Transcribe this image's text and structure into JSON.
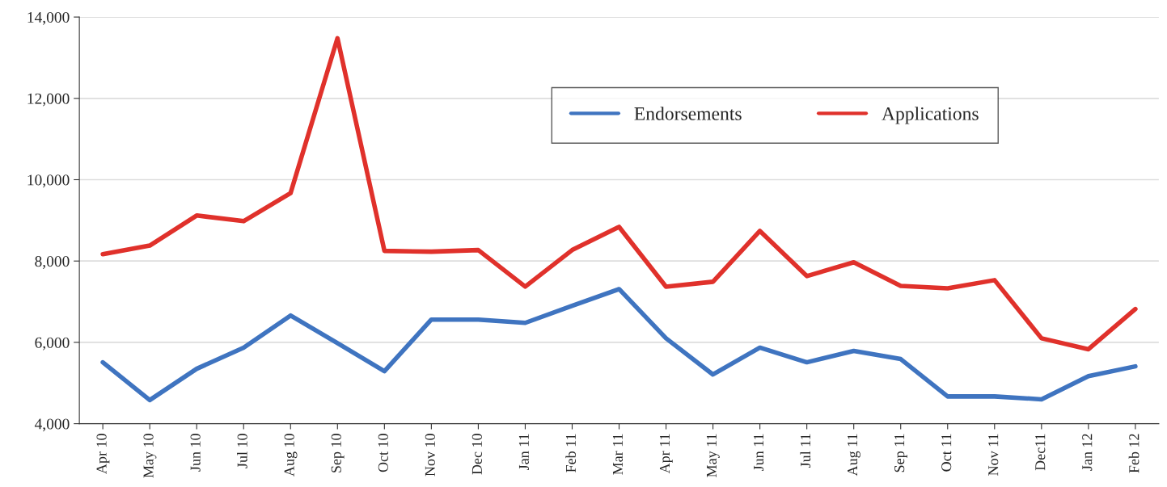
{
  "chart_data": {
    "type": "line",
    "categories": [
      "Apr 10",
      "May 10",
      "Jun 10",
      "Jul 10",
      "Aug 10",
      "Sep 10",
      "Oct 10",
      "Nov 10",
      "Dec 10",
      "Jan 11",
      "Feb 11",
      "Mar 11",
      "Apr 11",
      "May 11",
      "Jun 11",
      "Jul 11",
      "Aug 11",
      "Sep 11",
      "Oct 11",
      "Nov 11",
      "Dec11",
      "Jan 12",
      "Feb 12"
    ],
    "series": [
      {
        "name": "Endorsements",
        "color": "#3f74c0",
        "values": [
          5510,
          4580,
          5350,
          5870,
          6660,
          5980,
          5290,
          6560,
          6560,
          6480,
          6900,
          7310,
          6100,
          5210,
          5870,
          5510,
          5790,
          5590,
          4670,
          4670,
          4600,
          5170,
          5410
        ]
      },
      {
        "name": "Applications",
        "color": "#e0312b",
        "values": [
          8170,
          8380,
          9120,
          8980,
          9670,
          13480,
          8250,
          8230,
          8270,
          7370,
          8270,
          8840,
          7370,
          7490,
          8740,
          7630,
          7970,
          7390,
          7330,
          7530,
          6100,
          5830,
          6820
        ]
      }
    ],
    "ylim": [
      4000,
      14000
    ],
    "yticks": [
      {
        "value": 4000,
        "label": "4,000"
      },
      {
        "value": 6000,
        "label": "6,000"
      },
      {
        "value": 8000,
        "label": "8,000"
      },
      {
        "value": 10000,
        "label": "10,000"
      },
      {
        "value": 12000,
        "label": "12,000"
      },
      {
        "value": 14000,
        "label": "14,000"
      }
    ],
    "grid": "y",
    "legend": "top right",
    "line_style": "solid",
    "marker": "none"
  }
}
